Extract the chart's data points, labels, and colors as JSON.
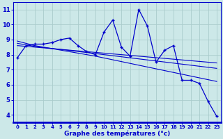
{
  "x": [
    0,
    1,
    2,
    3,
    4,
    5,
    6,
    7,
    8,
    9,
    10,
    11,
    12,
    13,
    14,
    15,
    16,
    17,
    18,
    19,
    20,
    21,
    22,
    23
  ],
  "temp_line": [
    7.8,
    8.6,
    8.7,
    8.7,
    8.8,
    9.0,
    9.1,
    8.6,
    8.2,
    8.0,
    9.5,
    10.3,
    8.5,
    7.9,
    11.0,
    9.9,
    7.5,
    8.3,
    8.6,
    6.3,
    6.3,
    6.1,
    4.9,
    3.9
  ],
  "trend1": [
    8.9,
    8.75,
    8.6,
    8.5,
    8.4,
    8.3,
    8.2,
    8.1,
    8.0,
    7.9,
    7.78,
    7.66,
    7.54,
    7.42,
    7.3,
    7.18,
    7.06,
    6.94,
    6.82,
    6.7,
    6.58,
    6.46,
    6.34,
    6.22
  ],
  "trend2": [
    8.75,
    8.65,
    8.55,
    8.48,
    8.41,
    8.35,
    8.28,
    8.21,
    8.14,
    8.07,
    8.0,
    7.93,
    7.86,
    7.79,
    7.72,
    7.65,
    7.58,
    7.51,
    7.44,
    7.37,
    7.3,
    7.23,
    7.16,
    7.09
  ],
  "trend3": [
    8.6,
    8.55,
    8.5,
    8.45,
    8.4,
    8.35,
    8.3,
    8.25,
    8.2,
    8.15,
    8.1,
    8.05,
    8.0,
    7.95,
    7.9,
    7.85,
    7.8,
    7.75,
    7.7,
    7.65,
    7.6,
    7.55,
    7.5,
    7.45
  ],
  "line_color": "#0000cc",
  "bg_color": "#cce8e8",
  "grid_color": "#aacccc",
  "xlabel": "Graphe des températures (°c)",
  "ylabel_ticks": [
    4,
    5,
    6,
    7,
    8,
    9,
    10,
    11
  ],
  "ylim": [
    3.5,
    11.5
  ],
  "xlim": [
    -0.5,
    23.5
  ]
}
